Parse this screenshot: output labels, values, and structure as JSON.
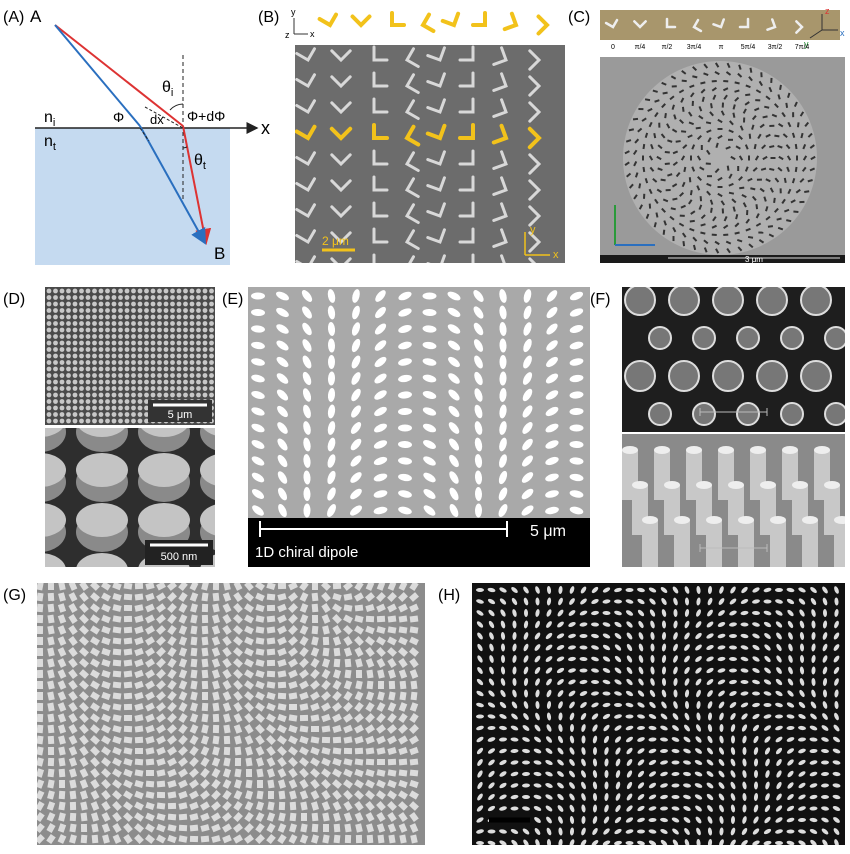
{
  "figure": {
    "panel_labels": [
      "(A)",
      "(B)",
      "(C)",
      "(D)",
      "(E)",
      "(F)",
      "(G)",
      "(H)"
    ],
    "panel_a": {
      "point_a": "A",
      "point_b": "B",
      "axis": "x",
      "n_i": {
        "base": "n",
        "sub": "i"
      },
      "n_t": {
        "base": "n",
        "sub": "t"
      },
      "phi": "Φ",
      "dx": "dx",
      "theta_i": {
        "base": "θ",
        "sub": "i"
      },
      "theta_t": {
        "base": "θ",
        "sub": "t"
      },
      "phi_dphi": "Φ+dΦ"
    },
    "panel_b": {
      "axes_top": [
        "y",
        "z",
        "x"
      ],
      "scale": "2 μm",
      "axes_bottom": [
        "y",
        "x"
      ]
    },
    "panel_c": {
      "phases": [
        "0",
        "π/4",
        "π/2",
        "3π/4",
        "π",
        "5π/4",
        "3π/2",
        "7π/4"
      ],
      "axes": [
        "z",
        "y",
        "x"
      ],
      "scale": "3 μm"
    },
    "panel_d": {
      "scale_top": "5 μm",
      "scale_bottom": "500 nm"
    },
    "panel_e": {
      "caption": "1D chiral dipole",
      "scale": "5 μm"
    }
  }
}
